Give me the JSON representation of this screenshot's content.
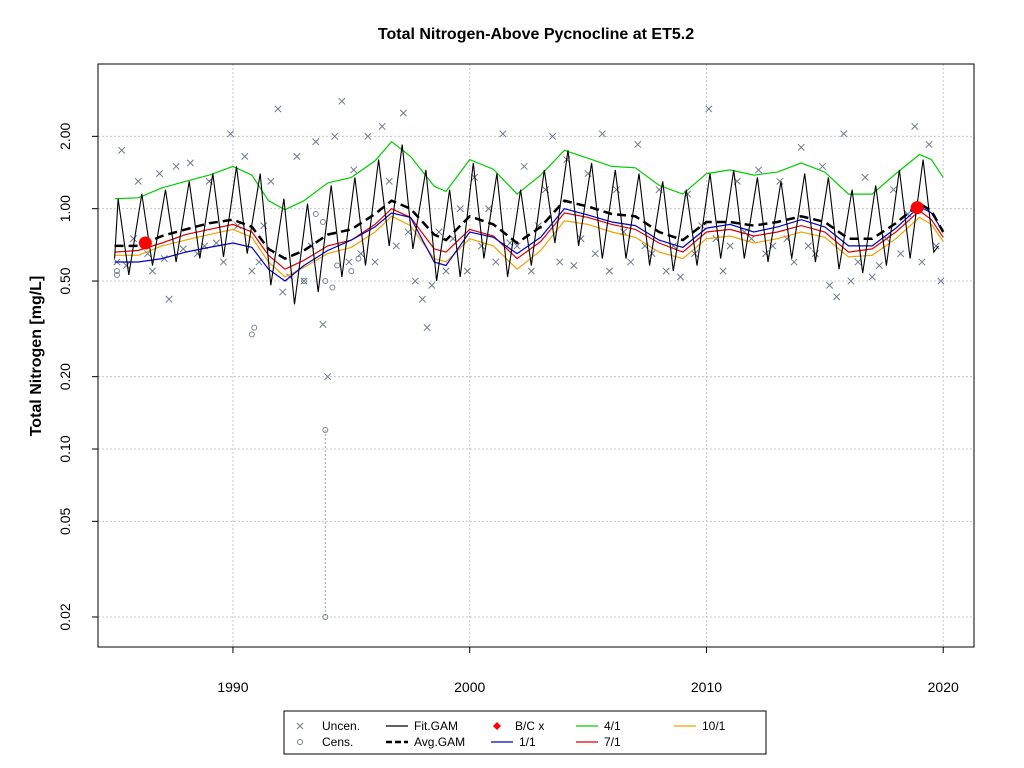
{
  "chart_data": {
    "type": "line",
    "title": "Total Nitrogen-Above Pycnocline at ET5.2",
    "xlabel": "",
    "ylabel": "Total Nitrogen [mg/L]",
    "y_scale": "log",
    "xlim": [
      1984.3,
      2021.3
    ],
    "ylim": [
      0.015,
      4.0
    ],
    "x_ticks": [
      1990,
      2000,
      2010,
      2020
    ],
    "x_tick_labels": [
      "1990",
      "2000",
      "2010",
      "2020"
    ],
    "y_ticks": [
      0.02,
      0.05,
      0.1,
      0.2,
      0.5,
      1.0,
      2.0
    ],
    "y_tick_labels": [
      "0.02",
      "0.05",
      "0.10",
      "0.20",
      "0.50",
      "1.00",
      "2.00"
    ],
    "grid": true,
    "legend_position": "bottom-center",
    "legend": [
      {
        "label": "Uncen.",
        "kind": "x-marker",
        "color": "#6e7a8a"
      },
      {
        "label": "Cens.",
        "kind": "circle-marker",
        "color": "#6e7a8a"
      },
      {
        "label": "Fit.GAM",
        "kind": "line",
        "color": "#000000"
      },
      {
        "label": "Avg.GAM",
        "kind": "dashed-line",
        "color": "#000000"
      },
      {
        "label": "B/C x",
        "kind": "diamond-marker",
        "color": "#ff0000"
      },
      {
        "label": "1/1",
        "kind": "line",
        "color": "#0000cc"
      },
      {
        "label": "4/1",
        "kind": "line",
        "color": "#00cc00"
      },
      {
        "label": "7/1",
        "kind": "line",
        "color": "#dd0000"
      },
      {
        "label": "10/1",
        "kind": "line",
        "color": "#f0a000"
      }
    ],
    "avg_gam": {
      "x": [
        1985.0,
        1986.0,
        1987.0,
        1988.0,
        1989.0,
        1990.0,
        1990.8,
        1991.5,
        1992.2,
        1993.0,
        1994.0,
        1995.0,
        1996.0,
        1996.7,
        1997.5,
        1998.5,
        1999.0,
        2000.0,
        2001.0,
        2002.0,
        2003.0,
        2004.0,
        2005.0,
        2006.0,
        2007.0,
        2008.0,
        2009.0,
        2010.0,
        2011.0,
        2012.0,
        2013.0,
        2014.0,
        2015.0,
        2016.0,
        2017.0,
        2018.0,
        2019.0,
        2019.5,
        2020.0
      ],
      "y": [
        0.7,
        0.7,
        0.77,
        0.82,
        0.87,
        0.9,
        0.84,
        0.68,
        0.62,
        0.67,
        0.78,
        0.82,
        0.95,
        1.08,
        1.0,
        0.78,
        0.74,
        0.93,
        0.86,
        0.72,
        0.84,
        1.08,
        1.02,
        0.95,
        0.93,
        0.8,
        0.74,
        0.88,
        0.88,
        0.85,
        0.88,
        0.93,
        0.88,
        0.75,
        0.75,
        0.87,
        1.05,
        0.98,
        0.8
      ]
    },
    "fit_gam": {
      "x": [
        1985.0,
        1985.15,
        1985.6,
        1986.15,
        1986.6,
        1987.15,
        1987.6,
        1988.15,
        1988.6,
        1989.15,
        1989.6,
        1990.15,
        1990.6,
        1991.15,
        1991.6,
        1992.15,
        1992.6,
        1993.15,
        1993.6,
        1994.15,
        1994.6,
        1995.15,
        1995.6,
        1996.15,
        1996.6,
        1997.15,
        1997.6,
        1998.15,
        1998.6,
        1999.15,
        1999.6,
        2000.15,
        2000.6,
        2001.15,
        2001.6,
        2002.15,
        2002.6,
        2003.15,
        2003.6,
        2004.15,
        2004.6,
        2005.15,
        2005.6,
        2006.15,
        2006.6,
        2007.15,
        2007.6,
        2008.15,
        2008.6,
        2009.15,
        2009.6,
        2010.15,
        2010.6,
        2011.15,
        2011.6,
        2012.15,
        2012.6,
        2013.15,
        2013.6,
        2014.15,
        2014.6,
        2015.15,
        2015.6,
        2016.15,
        2016.6,
        2017.15,
        2017.6,
        2018.15,
        2018.6,
        2019.15,
        2019.6,
        2019.8
      ],
      "y": [
        0.62,
        1.1,
        0.53,
        1.15,
        0.58,
        1.2,
        0.6,
        1.3,
        0.62,
        1.4,
        0.63,
        1.5,
        0.65,
        1.4,
        0.48,
        1.1,
        0.4,
        1.05,
        0.45,
        1.25,
        0.52,
        1.35,
        0.58,
        1.6,
        0.7,
        1.85,
        0.68,
        1.45,
        0.5,
        1.2,
        0.52,
        1.55,
        0.62,
        1.4,
        0.52,
        1.2,
        0.58,
        1.45,
        0.72,
        1.75,
        0.7,
        1.55,
        0.62,
        1.45,
        0.62,
        1.4,
        0.58,
        1.3,
        0.55,
        1.2,
        0.58,
        1.4,
        0.62,
        1.45,
        0.62,
        1.35,
        0.6,
        1.3,
        0.62,
        1.4,
        0.6,
        1.35,
        0.56,
        1.2,
        0.54,
        1.25,
        0.58,
        1.45,
        0.62,
        1.6,
        0.66,
        0.7
      ]
    },
    "series": [
      {
        "name": "4/1",
        "color": "#00cc00",
        "x": [
          1985.0,
          1986.0,
          1987.0,
          1988.0,
          1989.0,
          1990.0,
          1990.8,
          1991.5,
          1992.2,
          1993.0,
          1994.0,
          1995.0,
          1996.0,
          1996.7,
          1997.5,
          1998.5,
          1999.0,
          2000.0,
          2001.0,
          2002.0,
          2003.0,
          2004.0,
          2005.0,
          2006.0,
          2007.0,
          2008.0,
          2009.0,
          2010.0,
          2011.0,
          2012.0,
          2013.0,
          2014.0,
          2015.0,
          2016.0,
          2017.0,
          2018.0,
          2019.0,
          2019.5,
          2020.0
        ],
        "y": [
          1.1,
          1.11,
          1.22,
          1.3,
          1.38,
          1.5,
          1.38,
          1.08,
          0.99,
          1.08,
          1.28,
          1.35,
          1.58,
          1.9,
          1.65,
          1.24,
          1.18,
          1.6,
          1.46,
          1.15,
          1.38,
          1.75,
          1.62,
          1.5,
          1.48,
          1.25,
          1.15,
          1.4,
          1.45,
          1.38,
          1.42,
          1.55,
          1.42,
          1.15,
          1.15,
          1.4,
          1.68,
          1.6,
          1.35
        ]
      },
      {
        "name": "10/1",
        "color": "#f0a000",
        "x": [
          1985.0,
          1986.0,
          1987.0,
          1988.0,
          1989.0,
          1990.0,
          1990.8,
          1991.5,
          1992.2,
          1993.0,
          1994.0,
          1995.0,
          1996.0,
          1996.7,
          1997.5,
          1998.5,
          1999.0,
          2000.0,
          2001.0,
          2002.0,
          2003.0,
          2004.0,
          2005.0,
          2006.0,
          2007.0,
          2008.0,
          2009.0,
          2010.0,
          2011.0,
          2012.0,
          2013.0,
          2014.0,
          2015.0,
          2016.0,
          2017.0,
          2018.0,
          2019.0,
          2019.5,
          2020.0
        ],
        "y": [
          0.64,
          0.64,
          0.7,
          0.74,
          0.78,
          0.82,
          0.76,
          0.6,
          0.52,
          0.57,
          0.65,
          0.69,
          0.8,
          0.93,
          0.85,
          0.62,
          0.6,
          0.75,
          0.7,
          0.56,
          0.67,
          0.89,
          0.86,
          0.8,
          0.76,
          0.66,
          0.62,
          0.75,
          0.77,
          0.72,
          0.75,
          0.8,
          0.76,
          0.63,
          0.64,
          0.75,
          0.92,
          0.86,
          0.73
        ]
      },
      {
        "name": "7/1",
        "color": "#dd0000",
        "x": [
          1985.0,
          1986.0,
          1987.0,
          1988.0,
          1989.0,
          1990.0,
          1990.8,
          1991.5,
          1992.2,
          1993.0,
          1994.0,
          1995.0,
          1996.0,
          1996.7,
          1997.5,
          1998.5,
          1999.0,
          2000.0,
          2001.0,
          2002.0,
          2003.0,
          2004.0,
          2005.0,
          2006.0,
          2007.0,
          2008.0,
          2009.0,
          2010.0,
          2011.0,
          2012.0,
          2013.0,
          2014.0,
          2015.0,
          2016.0,
          2017.0,
          2018.0,
          2019.0,
          2019.5,
          2020.0
        ],
        "y": [
          0.66,
          0.67,
          0.72,
          0.78,
          0.82,
          0.86,
          0.8,
          0.64,
          0.56,
          0.61,
          0.7,
          0.74,
          0.86,
          1.0,
          0.92,
          0.68,
          0.66,
          0.82,
          0.77,
          0.62,
          0.73,
          0.96,
          0.92,
          0.86,
          0.82,
          0.72,
          0.66,
          0.8,
          0.82,
          0.77,
          0.8,
          0.85,
          0.8,
          0.66,
          0.68,
          0.8,
          0.98,
          0.9,
          0.76
        ]
      },
      {
        "name": "1/1",
        "color": "#0000cc",
        "x": [
          1985.0,
          1986.0,
          1987.0,
          1988.0,
          1989.0,
          1990.0,
          1990.8,
          1991.5,
          1992.2,
          1993.0,
          1994.0,
          1995.0,
          1996.0,
          1996.7,
          1997.5,
          1998.5,
          1999.0,
          2000.0,
          2001.0,
          2002.0,
          2003.0,
          2004.0,
          2005.0,
          2006.0,
          2007.0,
          2008.0,
          2009.0,
          2010.0,
          2011.0,
          2012.0,
          2013.0,
          2014.0,
          2015.0,
          2016.0,
          2017.0,
          2018.0,
          2019.0,
          2019.5,
          2020.0
        ],
        "y": [
          0.6,
          0.6,
          0.62,
          0.66,
          0.69,
          0.72,
          0.69,
          0.56,
          0.5,
          0.58,
          0.67,
          0.74,
          0.84,
          0.96,
          0.92,
          0.6,
          0.58,
          0.8,
          0.76,
          0.65,
          0.76,
          1.0,
          0.94,
          0.88,
          0.85,
          0.74,
          0.69,
          0.83,
          0.86,
          0.8,
          0.84,
          0.9,
          0.84,
          0.7,
          0.7,
          0.83,
          1.02,
          0.96,
          0.8
        ]
      }
    ],
    "bc_points": {
      "x": [
        1986.3,
        2018.9
      ],
      "y": [
        0.72,
        1.01
      ]
    },
    "uncensored_points": {
      "x": [
        1985.1,
        1985.3,
        1985.5,
        1985.8,
        1986.0,
        1986.4,
        1986.6,
        1986.9,
        1987.1,
        1987.3,
        1987.6,
        1987.9,
        1988.2,
        1988.5,
        1988.8,
        1989.0,
        1989.3,
        1989.6,
        1989.9,
        1990.2,
        1990.5,
        1990.8,
        1991.1,
        1991.3,
        1991.6,
        1991.9,
        1992.1,
        1992.4,
        1992.7,
        1993.0,
        1993.3,
        1993.5,
        1993.8,
        1994.0,
        1994.3,
        1994.6,
        1994.9,
        1995.1,
        1995.4,
        1995.7,
        1996.0,
        1996.3,
        1996.6,
        1996.9,
        1997.2,
        1997.4,
        1997.7,
        1998.0,
        1998.2,
        1998.4,
        1998.7,
        1999.0,
        1999.3,
        1999.6,
        1999.9,
        2000.2,
        2000.5,
        2000.8,
        2001.1,
        2001.4,
        2001.7,
        2002.0,
        2002.3,
        2002.6,
        2002.9,
        2003.2,
        2003.5,
        2003.8,
        2004.1,
        2004.4,
        2004.7,
        2005.0,
        2005.3,
        2005.6,
        2005.9,
        2006.2,
        2006.5,
        2006.8,
        2007.1,
        2007.4,
        2007.7,
        2008.0,
        2008.3,
        2008.6,
        2008.9,
        2009.2,
        2009.5,
        2009.8,
        2010.1,
        2010.4,
        2010.7,
        2011.0,
        2011.3,
        2011.6,
        2011.9,
        2012.2,
        2012.5,
        2012.8,
        2013.1,
        2013.4,
        2013.7,
        2014.0,
        2014.3,
        2014.6,
        2014.9,
        2015.2,
        2015.5,
        2015.8,
        2016.1,
        2016.4,
        2016.7,
        2017.0,
        2017.3,
        2017.6,
        2017.9,
        2018.2,
        2018.5,
        2018.8,
        2019.1,
        2019.4,
        2019.7,
        2019.9
      ],
      "y": [
        0.6,
        1.75,
        0.58,
        0.75,
        1.3,
        0.65,
        0.55,
        1.4,
        0.62,
        0.42,
        1.5,
        0.68,
        1.55,
        0.65,
        0.7,
        1.3,
        0.72,
        0.6,
        2.05,
        0.85,
        1.65,
        0.55,
        0.6,
        0.85,
        1.3,
        2.6,
        0.45,
        0.52,
        1.65,
        0.5,
        0.7,
        1.9,
        0.33,
        0.2,
        2.0,
        2.8,
        0.6,
        1.45,
        0.65,
        2.0,
        0.6,
        2.2,
        1.3,
        0.7,
        2.5,
        0.8,
        0.5,
        0.42,
        0.32,
        0.48,
        0.8,
        0.55,
        0.75,
        1.0,
        0.55,
        1.35,
        0.7,
        1.0,
        0.6,
        2.05,
        0.72,
        0.7,
        1.5,
        0.55,
        0.85,
        1.2,
        2.0,
        0.6,
        1.6,
        0.58,
        0.75,
        1.4,
        0.65,
        2.05,
        0.55,
        1.2,
        0.8,
        0.6,
        1.85,
        0.7,
        0.65,
        1.2,
        0.55,
        0.7,
        0.52,
        1.15,
        0.65,
        0.85,
        2.6,
        0.75,
        0.55,
        0.7,
        1.3,
        0.8,
        0.75,
        1.45,
        0.65,
        0.7,
        1.3,
        0.75,
        0.6,
        1.8,
        0.7,
        0.65,
        1.5,
        0.48,
        0.43,
        2.05,
        0.5,
        0.6,
        1.35,
        0.52,
        0.58,
        0.75,
        1.2,
        0.65,
        0.95,
        2.2,
        0.6,
        1.85,
        0.7,
        0.5
      ]
    },
    "censored_points": {
      "x": [
        1985.1,
        1985.1,
        1990.8,
        1990.9,
        1993.0,
        1993.5,
        1993.8,
        1993.9,
        1994.2,
        1994.4,
        1995.0,
        1995.3,
        1993.9,
        1993.9
      ],
      "y": [
        0.55,
        0.53,
        0.3,
        0.32,
        0.5,
        0.95,
        0.88,
        0.5,
        0.47,
        0.58,
        0.55,
        0.62,
        0.12,
        0.02
      ]
    },
    "censored_interval": {
      "x": 1993.9,
      "y_low": 0.02,
      "y_high": 0.12
    }
  }
}
